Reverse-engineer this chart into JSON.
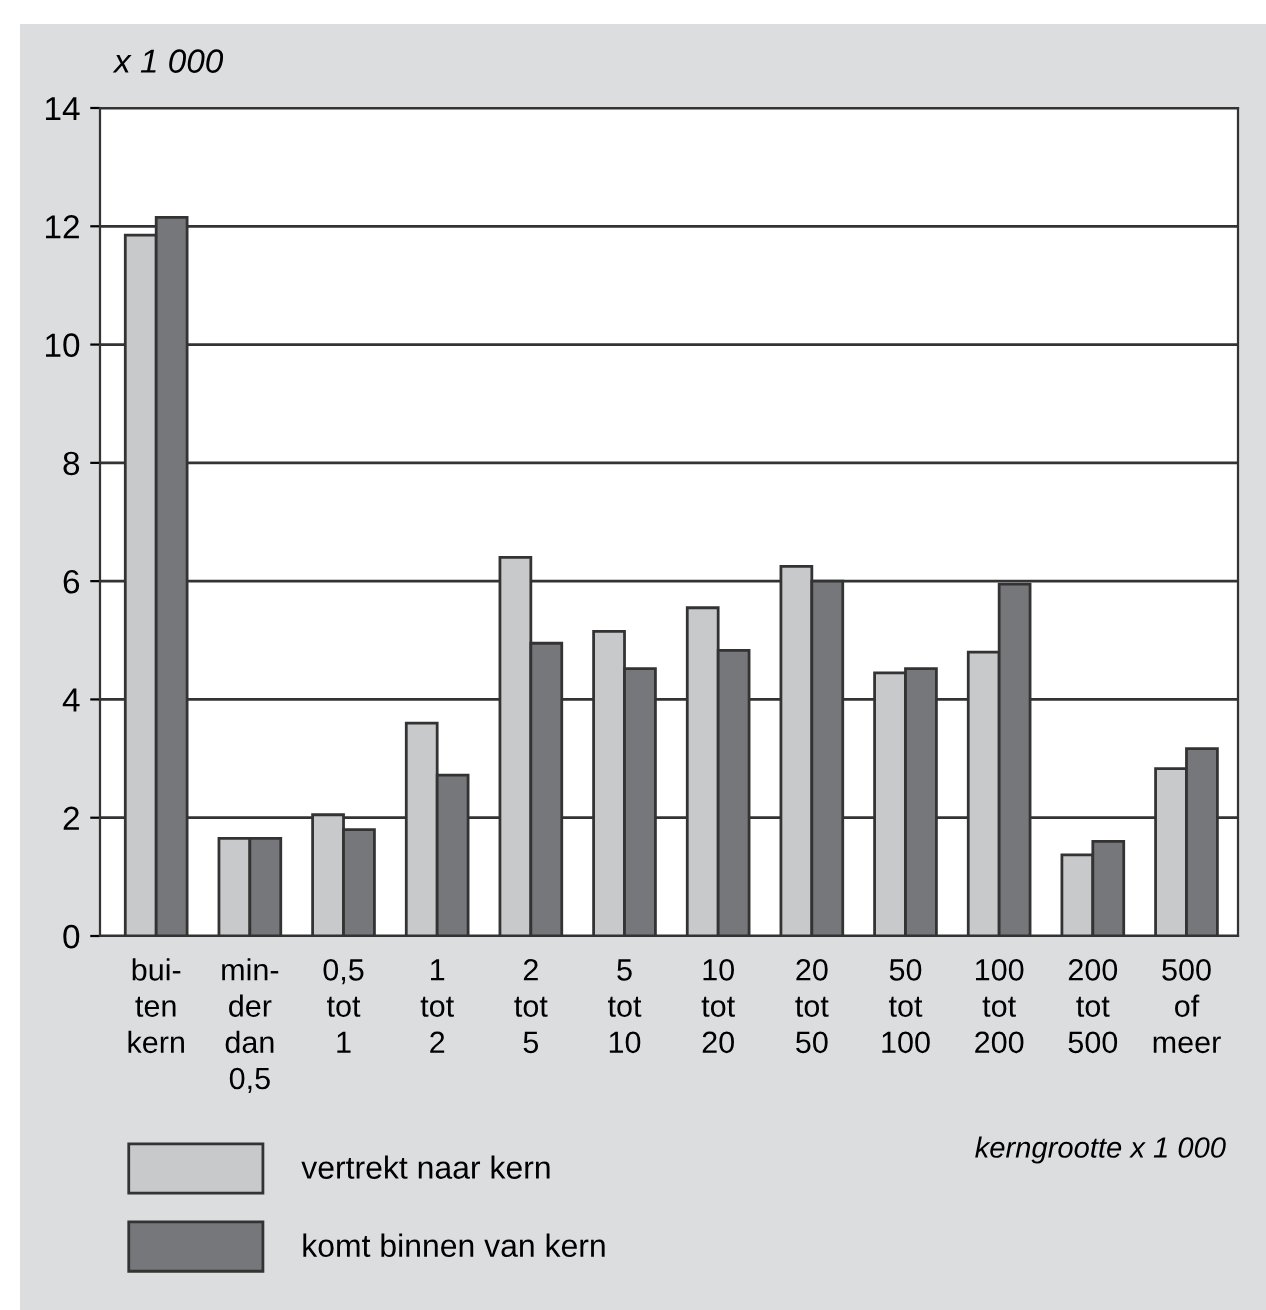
{
  "chart_data": {
    "type": "bar",
    "categories": [
      "bui-\nten\nkern",
      "min-\nder\ndan\n0,5",
      "0,5\ntot\n1",
      "1\ntot\n2",
      "2\ntot\n5",
      "5\ntot\n10",
      "10\ntot\n20",
      "20\ntot\n50",
      "50\ntot\n100",
      "100\ntot\n200",
      "200\ntot\n500",
      "500\nof\nmeer"
    ],
    "series": [
      {
        "name": "vertrekt naar kern",
        "color": "#c8c9cb",
        "values": [
          11.85,
          1.65,
          2.05,
          3.6,
          6.4,
          5.15,
          5.55,
          6.25,
          4.45,
          4.8,
          1.37,
          2.83
        ]
      },
      {
        "name": "komt binnen van kern",
        "color": "#76777b",
        "values": [
          12.15,
          1.65,
          1.8,
          2.72,
          4.95,
          4.52,
          4.83,
          6.0,
          4.52,
          5.95,
          1.6,
          3.17
        ]
      }
    ],
    "ylabel": "x 1 000",
    "xlabel": "kerngrootte x 1 000",
    "ylim": [
      0,
      14
    ],
    "yticks": [
      0,
      2,
      4,
      6,
      8,
      10,
      12,
      14
    ],
    "grid": "y",
    "legend": "bottom left"
  }
}
